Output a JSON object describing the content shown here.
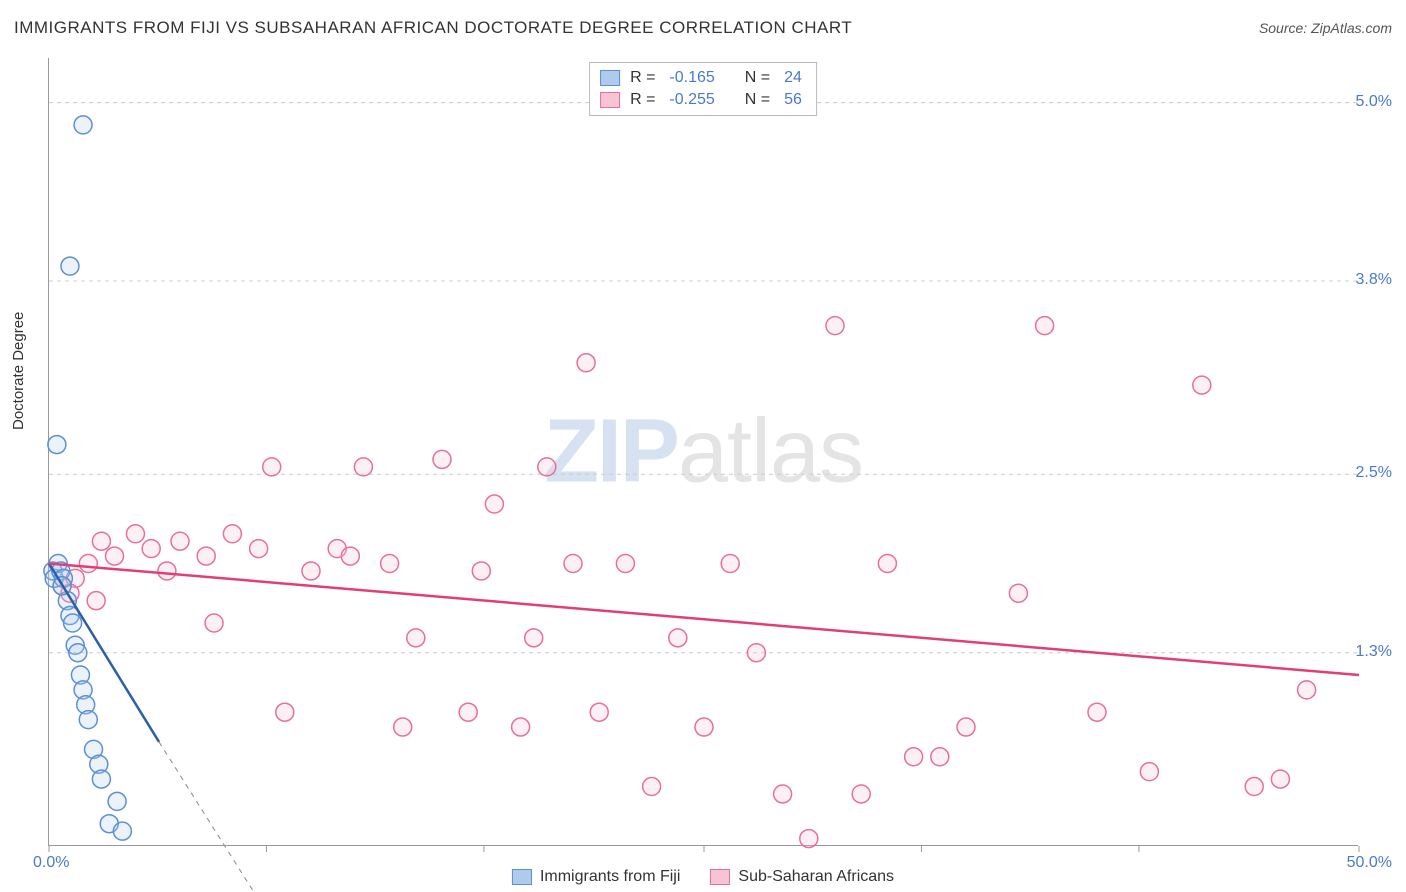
{
  "title": "IMMIGRANTS FROM FIJI VS SUBSAHARAN AFRICAN DOCTORATE DEGREE CORRELATION CHART",
  "source_label": "Source:",
  "source_value": "ZipAtlas.com",
  "watermark": {
    "part1": "ZIP",
    "part2": "atlas"
  },
  "y_axis_label": "Doctorate Degree",
  "chart": {
    "type": "scatter",
    "xlim": [
      0,
      50
    ],
    "ylim": [
      0,
      5.3
    ],
    "x_tick_labels": {
      "min": "0.0%",
      "max": "50.0%"
    },
    "y_ticks": [
      {
        "value": 1.3,
        "label": "1.3%"
      },
      {
        "value": 2.5,
        "label": "2.5%"
      },
      {
        "value": 3.8,
        "label": "3.8%"
      },
      {
        "value": 5.0,
        "label": "5.0%"
      }
    ],
    "x_tick_positions": [
      0,
      8.3,
      16.6,
      25,
      33.3,
      41.6,
      50
    ],
    "background_color": "#ffffff",
    "grid_color": "#cccccc",
    "axis_color": "#999999",
    "tick_label_color": "#4a7bc8",
    "marker_radius": 9,
    "marker_stroke_width": 1.5,
    "marker_fill_opacity": 0.25,
    "line_width": 2.5
  },
  "series": [
    {
      "name": "Immigrants from Fiji",
      "swatch_fill": "#aecbeb",
      "swatch_border": "#5b8fd6",
      "marker_stroke": "#5b8fd6",
      "marker_fill": "#aecbeb",
      "line_color": "#2b5fa8",
      "dash_color": "#888888",
      "R": "-0.165",
      "N": "24",
      "trend": {
        "x1": 0,
        "y1": 1.9,
        "x2": 4.2,
        "y2": 0.7
      },
      "trend_dash": {
        "x1": 4.2,
        "y1": 0.7,
        "x2": 8.5,
        "y2": -0.5
      },
      "points": [
        [
          0.15,
          1.85
        ],
        [
          0.2,
          1.8
        ],
        [
          0.35,
          1.9
        ],
        [
          0.45,
          1.85
        ],
        [
          0.55,
          1.8
        ],
        [
          0.7,
          1.65
        ],
        [
          0.8,
          1.55
        ],
        [
          0.9,
          1.5
        ],
        [
          1.0,
          1.35
        ],
        [
          1.1,
          1.3
        ],
        [
          1.2,
          1.15
        ],
        [
          1.3,
          1.05
        ],
        [
          1.4,
          0.95
        ],
        [
          1.5,
          0.85
        ],
        [
          1.7,
          0.65
        ],
        [
          1.9,
          0.55
        ],
        [
          2.0,
          0.45
        ],
        [
          2.3,
          0.15
        ],
        [
          2.6,
          0.3
        ],
        [
          2.8,
          0.1
        ],
        [
          0.3,
          2.7
        ],
        [
          0.8,
          3.9
        ],
        [
          1.3,
          4.85
        ],
        [
          0.5,
          1.75
        ]
      ]
    },
    {
      "name": "Sub-Saharan Africans",
      "swatch_fill": "#f6c4d3",
      "swatch_border": "#e86f9a",
      "marker_stroke": "#e86f9a",
      "marker_fill": "#f6c4d3",
      "line_color": "#e23d77",
      "R": "-0.255",
      "N": "56",
      "trend": {
        "x1": 0,
        "y1": 1.9,
        "x2": 50,
        "y2": 1.15
      },
      "points": [
        [
          0.5,
          1.75
        ],
        [
          1.0,
          1.8
        ],
        [
          1.5,
          1.9
        ],
        [
          2.0,
          2.05
        ],
        [
          2.5,
          1.95
        ],
        [
          3.3,
          2.1
        ],
        [
          3.9,
          2.0
        ],
        [
          4.5,
          1.85
        ],
        [
          5.0,
          2.05
        ],
        [
          6.0,
          1.95
        ],
        [
          6.3,
          1.5
        ],
        [
          7.0,
          2.1
        ],
        [
          8.0,
          2.0
        ],
        [
          8.5,
          2.55
        ],
        [
          9.0,
          0.9
        ],
        [
          10.0,
          1.85
        ],
        [
          11.0,
          2.0
        ],
        [
          11.5,
          1.95
        ],
        [
          12.0,
          2.55
        ],
        [
          13.0,
          1.9
        ],
        [
          13.5,
          0.8
        ],
        [
          14.0,
          1.4
        ],
        [
          15.0,
          2.6
        ],
        [
          16.0,
          0.9
        ],
        [
          16.5,
          1.85
        ],
        [
          17.0,
          2.3
        ],
        [
          18.0,
          0.8
        ],
        [
          18.5,
          1.4
        ],
        [
          19.0,
          2.55
        ],
        [
          20.0,
          1.9
        ],
        [
          20.5,
          3.25
        ],
        [
          21.0,
          0.9
        ],
        [
          22.0,
          1.9
        ],
        [
          23.0,
          0.4
        ],
        [
          24.0,
          1.4
        ],
        [
          25.0,
          0.8
        ],
        [
          26.0,
          1.9
        ],
        [
          27.0,
          1.3
        ],
        [
          28.0,
          0.35
        ],
        [
          29.0,
          0.05
        ],
        [
          30.0,
          3.5
        ],
        [
          31.0,
          0.35
        ],
        [
          32.0,
          1.9
        ],
        [
          33.0,
          0.6
        ],
        [
          34.0,
          0.6
        ],
        [
          35.0,
          0.8
        ],
        [
          37.0,
          1.7
        ],
        [
          38.0,
          3.5
        ],
        [
          40.0,
          0.9
        ],
        [
          42.0,
          0.5
        ],
        [
          44.0,
          3.1
        ],
        [
          46.0,
          0.4
        ],
        [
          47.0,
          0.45
        ],
        [
          48.0,
          1.05
        ],
        [
          0.8,
          1.7
        ],
        [
          1.8,
          1.65
        ]
      ]
    }
  ],
  "legend_bottom": [
    {
      "label": "Immigrants from Fiji",
      "series": 0
    },
    {
      "label": "Sub-Saharan Africans",
      "series": 1
    }
  ]
}
